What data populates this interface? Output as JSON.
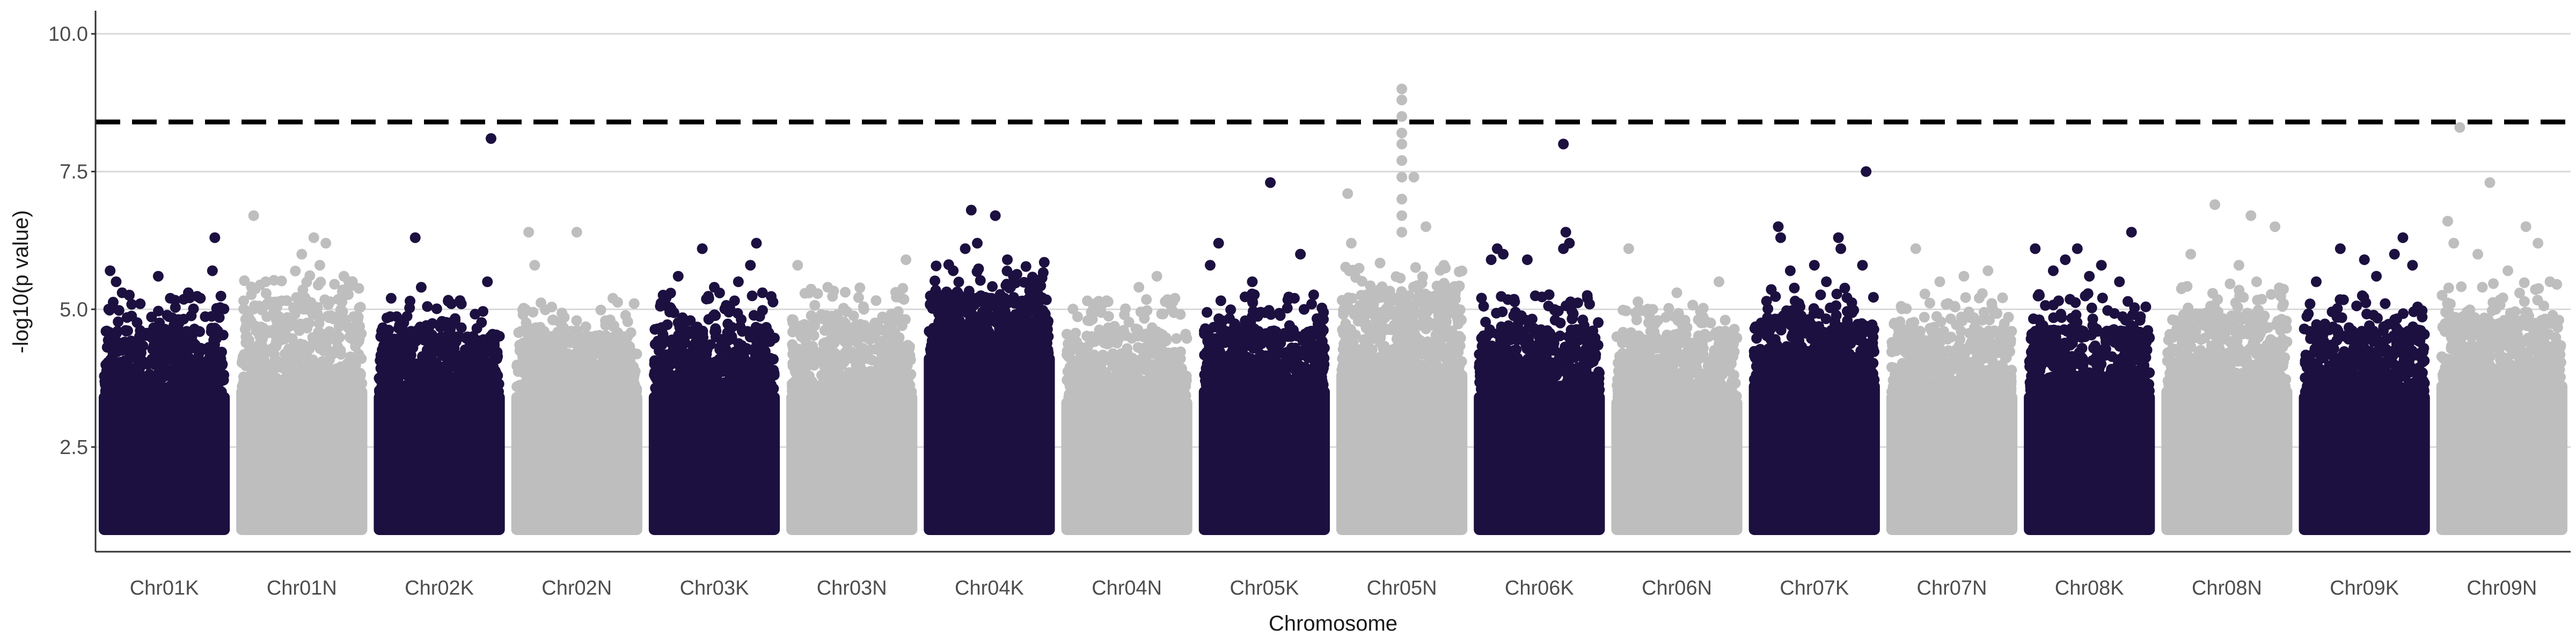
{
  "chart_data": {
    "type": "scatter",
    "subtype": "manhattan",
    "title": "",
    "xlabel": "Chromosome",
    "ylabel": "-log10(p value)",
    "ylim": [
      0.6,
      10.4
    ],
    "yticks": [
      2.5,
      5.0,
      7.5,
      10.0
    ],
    "grid": "horizontal major gridlines",
    "legend": "none",
    "significance_threshold": 8.4,
    "colors": {
      "odd_chromosome": "#1c1040",
      "even_chromosome": "#bebebe",
      "threshold": "#000000",
      "grid": "#d9d9d9",
      "axis": "#333333"
    },
    "categories": [
      "Chr01K",
      "Chr01N",
      "Chr02K",
      "Chr02N",
      "Chr03K",
      "Chr03N",
      "Chr04K",
      "Chr04N",
      "Chr05K",
      "Chr05N",
      "Chr06K",
      "Chr06N",
      "Chr07K",
      "Chr07N",
      "Chr08K",
      "Chr08N",
      "Chr09K",
      "Chr09N"
    ],
    "series": [
      {
        "chromosome": "Chr01K",
        "color_group": "odd",
        "dense_band_top": 3.5,
        "bulk_top": 4.6,
        "points": [
          [
            0.05,
            5.7
          ],
          [
            0.1,
            5.5
          ],
          [
            0.15,
            5.3
          ],
          [
            0.3,
            5.1
          ],
          [
            0.45,
            5.6
          ],
          [
            0.55,
            5.2
          ],
          [
            0.7,
            5.3
          ],
          [
            0.8,
            5.2
          ],
          [
            0.9,
            5.7
          ],
          [
            0.92,
            6.3
          ],
          [
            0.95,
            5.0
          ]
        ]
      },
      {
        "chromosome": "Chr01N",
        "color_group": "even",
        "dense_band_top": 3.6,
        "bulk_top": 5.0,
        "points": [
          [
            0.1,
            6.7
          ],
          [
            0.2,
            5.5
          ],
          [
            0.5,
            6.0
          ],
          [
            0.6,
            6.3
          ],
          [
            0.65,
            5.8
          ],
          [
            0.7,
            6.2
          ],
          [
            0.85,
            5.6
          ]
        ]
      },
      {
        "chromosome": "Chr02K",
        "color_group": "odd",
        "dense_band_top": 3.5,
        "bulk_top": 4.5,
        "points": [
          [
            0.1,
            5.2
          ],
          [
            0.3,
            6.3
          ],
          [
            0.35,
            5.4
          ],
          [
            0.6,
            5.1
          ],
          [
            0.9,
            5.5
          ],
          [
            0.93,
            8.1
          ]
        ]
      },
      {
        "chromosome": "Chr02N",
        "color_group": "even",
        "dense_band_top": 3.5,
        "bulk_top": 4.5,
        "points": [
          [
            0.1,
            6.4
          ],
          [
            0.15,
            5.8
          ],
          [
            0.5,
            6.4
          ],
          [
            0.8,
            5.2
          ]
        ]
      },
      {
        "chromosome": "Chr03K",
        "color_group": "odd",
        "dense_band_top": 3.5,
        "bulk_top": 4.6,
        "points": [
          [
            0.2,
            5.6
          ],
          [
            0.4,
            6.1
          ],
          [
            0.5,
            5.4
          ],
          [
            0.7,
            5.5
          ],
          [
            0.8,
            5.8
          ],
          [
            0.85,
            6.2
          ],
          [
            0.9,
            5.3
          ]
        ]
      },
      {
        "chromosome": "Chr03N",
        "color_group": "even",
        "dense_band_top": 3.5,
        "bulk_top": 4.7,
        "points": [
          [
            0.05,
            5.8
          ],
          [
            0.3,
            5.4
          ],
          [
            0.6,
            5.0
          ],
          [
            0.95,
            5.9
          ]
        ]
      },
      {
        "chromosome": "Chr04K",
        "color_group": "odd",
        "dense_band_top": 4.2,
        "bulk_top": 5.2,
        "points": [
          [
            0.2,
            5.7
          ],
          [
            0.3,
            6.1
          ],
          [
            0.35,
            6.8
          ],
          [
            0.4,
            6.2
          ],
          [
            0.55,
            6.7
          ],
          [
            0.65,
            5.9
          ],
          [
            0.7,
            5.6
          ],
          [
            0.9,
            5.0
          ]
        ]
      },
      {
        "chromosome": "Chr04N",
        "color_group": "even",
        "dense_band_top": 3.4,
        "bulk_top": 4.5,
        "points": [
          [
            0.3,
            5.1
          ],
          [
            0.6,
            5.4
          ],
          [
            0.75,
            5.6
          ],
          [
            0.9,
            5.2
          ]
        ]
      },
      {
        "chromosome": "Chr05K",
        "color_group": "odd",
        "dense_band_top": 3.6,
        "bulk_top": 4.6,
        "points": [
          [
            0.05,
            5.8
          ],
          [
            0.12,
            6.2
          ],
          [
            0.4,
            5.5
          ],
          [
            0.55,
            7.3
          ],
          [
            0.75,
            5.2
          ],
          [
            0.8,
            6.0
          ]
        ]
      },
      {
        "chromosome": "Chr05N",
        "color_group": "even",
        "dense_band_top": 3.9,
        "bulk_top": 5.2,
        "points": [
          [
            0.05,
            7.1
          ],
          [
            0.08,
            6.2
          ],
          [
            0.5,
            9.0
          ],
          [
            0.5,
            8.8
          ],
          [
            0.5,
            8.5
          ],
          [
            0.5,
            8.2
          ],
          [
            0.5,
            8.0
          ],
          [
            0.5,
            7.7
          ],
          [
            0.5,
            7.4
          ],
          [
            0.5,
            7.0
          ],
          [
            0.5,
            6.7
          ],
          [
            0.5,
            6.4
          ],
          [
            0.6,
            7.4
          ],
          [
            0.7,
            6.5
          ],
          [
            0.85,
            5.8
          ]
        ]
      },
      {
        "chromosome": "Chr06K",
        "color_group": "odd",
        "dense_band_top": 3.5,
        "bulk_top": 4.6,
        "points": [
          [
            0.1,
            5.9
          ],
          [
            0.15,
            6.1
          ],
          [
            0.2,
            6.0
          ],
          [
            0.4,
            5.9
          ],
          [
            0.7,
            6.1
          ],
          [
            0.72,
            6.4
          ],
          [
            0.75,
            6.2
          ],
          [
            0.7,
            8.0
          ],
          [
            0.9,
            5.2
          ]
        ]
      },
      {
        "chromosome": "Chr06N",
        "color_group": "even",
        "dense_band_top": 3.4,
        "bulk_top": 4.5,
        "points": [
          [
            0.1,
            6.1
          ],
          [
            0.3,
            5.0
          ],
          [
            0.5,
            5.3
          ],
          [
            0.85,
            5.5
          ]
        ]
      },
      {
        "chromosome": "Chr07K",
        "color_group": "odd",
        "dense_band_top": 3.7,
        "bulk_top": 4.7,
        "points": [
          [
            0.2,
            6.5
          ],
          [
            0.22,
            6.3
          ],
          [
            0.3,
            5.7
          ],
          [
            0.5,
            5.8
          ],
          [
            0.6,
            5.5
          ],
          [
            0.7,
            6.3
          ],
          [
            0.72,
            6.1
          ],
          [
            0.9,
            5.8
          ],
          [
            0.93,
            7.5
          ]
        ]
      },
      {
        "chromosome": "Chr07N",
        "color_group": "even",
        "dense_band_top": 3.5,
        "bulk_top": 4.6,
        "points": [
          [
            0.2,
            6.1
          ],
          [
            0.4,
            5.5
          ],
          [
            0.6,
            5.6
          ],
          [
            0.8,
            5.7
          ]
        ]
      },
      {
        "chromosome": "Chr08K",
        "color_group": "odd",
        "dense_band_top": 3.5,
        "bulk_top": 4.6,
        "points": [
          [
            0.05,
            6.1
          ],
          [
            0.2,
            5.7
          ],
          [
            0.3,
            5.9
          ],
          [
            0.4,
            6.1
          ],
          [
            0.5,
            5.6
          ],
          [
            0.6,
            5.8
          ],
          [
            0.75,
            5.5
          ],
          [
            0.85,
            6.4
          ]
        ]
      },
      {
        "chromosome": "Chr08N",
        "color_group": "even",
        "dense_band_top": 3.6,
        "bulk_top": 4.8,
        "points": [
          [
            0.2,
            6.0
          ],
          [
            0.4,
            6.9
          ],
          [
            0.6,
            5.8
          ],
          [
            0.7,
            6.7
          ],
          [
            0.9,
            6.5
          ]
        ]
      },
      {
        "chromosome": "Chr09K",
        "color_group": "odd",
        "dense_band_top": 3.5,
        "bulk_top": 4.6,
        "points": [
          [
            0.1,
            5.5
          ],
          [
            0.3,
            6.1
          ],
          [
            0.5,
            5.9
          ],
          [
            0.6,
            5.6
          ],
          [
            0.75,
            6.0
          ],
          [
            0.82,
            6.3
          ],
          [
            0.9,
            5.8
          ]
        ]
      },
      {
        "chromosome": "Chr09N",
        "color_group": "even",
        "dense_band_top": 3.7,
        "bulk_top": 4.8,
        "points": [
          [
            0.05,
            6.6
          ],
          [
            0.1,
            6.2
          ],
          [
            0.15,
            8.3
          ],
          [
            0.3,
            6.0
          ],
          [
            0.4,
            7.3
          ],
          [
            0.55,
            5.7
          ],
          [
            0.7,
            6.5
          ],
          [
            0.8,
            6.2
          ],
          [
            0.9,
            5.5
          ]
        ]
      }
    ]
  }
}
